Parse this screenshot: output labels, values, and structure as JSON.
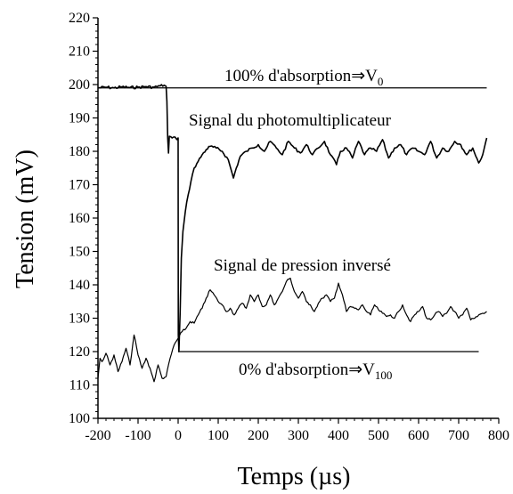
{
  "chart_data": {
    "type": "line",
    "title": "",
    "xlabel": "Temps (µs)",
    "ylabel": "Tension (mV)",
    "xlim": [
      -200,
      800
    ],
    "ylim": [
      100,
      220
    ],
    "xticks": [
      -200,
      -100,
      0,
      100,
      200,
      300,
      400,
      500,
      600,
      700,
      800
    ],
    "yticks": [
      100,
      110,
      120,
      130,
      140,
      150,
      160,
      170,
      180,
      190,
      200,
      210,
      220
    ],
    "xtick_labels": [
      "-200",
      "-100",
      "0",
      "100",
      "200",
      "300",
      "400",
      "500",
      "600",
      "700",
      "800"
    ],
    "ytick_labels": [
      "100",
      "110",
      "120",
      "130",
      "140",
      "150",
      "160",
      "170",
      "180",
      "190",
      "200",
      "210",
      "220"
    ],
    "grid": false,
    "reference_lines": [
      {
        "y": 199,
        "x_range": [
          -200,
          770
        ]
      },
      {
        "y": 120,
        "x_range": [
          0,
          750
        ]
      }
    ],
    "series": [
      {
        "points": [
          [
            -200,
            199
          ],
          [
            -180,
            199.2
          ],
          [
            -160,
            199
          ],
          [
            -140,
            199.3
          ],
          [
            -120,
            199.1
          ],
          [
            -100,
            199.2
          ],
          [
            -80,
            199.4
          ],
          [
            -60,
            199.2
          ],
          [
            -45,
            199.6
          ],
          [
            -35,
            199.8
          ],
          [
            -30,
            199.5
          ],
          [
            -28,
            195
          ],
          [
            -26,
            184
          ],
          [
            -24,
            179.5
          ],
          [
            -22,
            184.5
          ],
          [
            -15,
            184
          ],
          [
            -8,
            184.3
          ],
          [
            -3,
            183.5
          ],
          [
            0,
            184
          ],
          [
            0.5,
            125
          ],
          [
            2,
            120
          ],
          [
            5,
            132
          ],
          [
            8,
            148
          ],
          [
            12,
            156
          ],
          [
            18,
            162
          ],
          [
            25,
            167
          ],
          [
            32,
            171
          ],
          [
            40,
            175
          ],
          [
            50,
            177
          ],
          [
            60,
            179
          ],
          [
            70,
            180.5
          ],
          [
            80,
            181.5
          ],
          [
            95,
            181
          ],
          [
            110,
            180
          ],
          [
            125,
            177.5
          ],
          [
            138,
            172
          ],
          [
            145,
            175
          ],
          [
            155,
            178.5
          ],
          [
            170,
            180
          ],
          [
            185,
            181
          ],
          [
            200,
            182
          ],
          [
            215,
            180
          ],
          [
            230,
            183
          ],
          [
            245,
            181
          ],
          [
            260,
            179
          ],
          [
            275,
            183
          ],
          [
            290,
            181
          ],
          [
            305,
            179.5
          ],
          [
            320,
            182
          ],
          [
            335,
            179
          ],
          [
            350,
            181
          ],
          [
            365,
            183
          ],
          [
            380,
            179
          ],
          [
            395,
            176
          ],
          [
            405,
            180
          ],
          [
            420,
            181
          ],
          [
            435,
            178
          ],
          [
            450,
            183
          ],
          [
            465,
            179
          ],
          [
            480,
            181
          ],
          [
            495,
            180
          ],
          [
            510,
            183.5
          ],
          [
            525,
            178
          ],
          [
            540,
            181
          ],
          [
            555,
            182
          ],
          [
            570,
            179
          ],
          [
            585,
            181
          ],
          [
            600,
            180
          ],
          [
            615,
            179
          ],
          [
            630,
            183
          ],
          [
            645,
            178
          ],
          [
            660,
            181
          ],
          [
            675,
            180
          ],
          [
            690,
            183
          ],
          [
            705,
            182
          ],
          [
            720,
            179
          ],
          [
            735,
            181
          ],
          [
            750,
            176.5
          ],
          [
            760,
            179
          ],
          [
            770,
            184
          ]
        ]
      },
      {
        "points": [
          [
            -200,
            112
          ],
          [
            -195,
            118
          ],
          [
            -190,
            117
          ],
          [
            -180,
            119.5
          ],
          [
            -170,
            116
          ],
          [
            -160,
            119
          ],
          [
            -150,
            114
          ],
          [
            -140,
            117
          ],
          [
            -130,
            121
          ],
          [
            -120,
            116
          ],
          [
            -110,
            125
          ],
          [
            -100,
            119
          ],
          [
            -90,
            115
          ],
          [
            -80,
            118
          ],
          [
            -70,
            115
          ],
          [
            -60,
            111
          ],
          [
            -50,
            116
          ],
          [
            -40,
            112
          ],
          [
            -30,
            112.5
          ],
          [
            -20,
            118
          ],
          [
            -10,
            122
          ],
          [
            0,
            124
          ],
          [
            10,
            126
          ],
          [
            20,
            127
          ],
          [
            30,
            129
          ],
          [
            40,
            128.5
          ],
          [
            50,
            131
          ],
          [
            60,
            133
          ],
          [
            70,
            136
          ],
          [
            80,
            138.5
          ],
          [
            90,
            137
          ],
          [
            100,
            135
          ],
          [
            110,
            134
          ],
          [
            120,
            132
          ],
          [
            130,
            133
          ],
          [
            140,
            131
          ],
          [
            150,
            133
          ],
          [
            160,
            134.5
          ],
          [
            170,
            133
          ],
          [
            180,
            137
          ],
          [
            190,
            135
          ],
          [
            200,
            137
          ],
          [
            210,
            133.5
          ],
          [
            220,
            134
          ],
          [
            230,
            137
          ],
          [
            240,
            134
          ],
          [
            250,
            136
          ],
          [
            260,
            138
          ],
          [
            270,
            141
          ],
          [
            280,
            142
          ],
          [
            290,
            138
          ],
          [
            300,
            136
          ],
          [
            310,
            138
          ],
          [
            320,
            135
          ],
          [
            330,
            134
          ],
          [
            340,
            132
          ],
          [
            350,
            134.5
          ],
          [
            360,
            136
          ],
          [
            370,
            137
          ],
          [
            380,
            135
          ],
          [
            390,
            136
          ],
          [
            400,
            140.5
          ],
          [
            410,
            137
          ],
          [
            420,
            132
          ],
          [
            430,
            133.5
          ],
          [
            440,
            133
          ],
          [
            450,
            132.5
          ],
          [
            460,
            134
          ],
          [
            470,
            132
          ],
          [
            480,
            131
          ],
          [
            490,
            134
          ],
          [
            500,
            132.5
          ],
          [
            510,
            131.5
          ],
          [
            520,
            130.5
          ],
          [
            530,
            131
          ],
          [
            540,
            130
          ],
          [
            550,
            132
          ],
          [
            560,
            134
          ],
          [
            570,
            131
          ],
          [
            580,
            129
          ],
          [
            590,
            131
          ],
          [
            600,
            132
          ],
          [
            610,
            133.5
          ],
          [
            620,
            130
          ],
          [
            630,
            129.5
          ],
          [
            640,
            131
          ],
          [
            650,
            132
          ],
          [
            660,
            130.5
          ],
          [
            670,
            131.5
          ],
          [
            680,
            133.5
          ],
          [
            690,
            132
          ],
          [
            700,
            130
          ],
          [
            710,
            131
          ],
          [
            720,
            133
          ],
          [
            730,
            129.5
          ],
          [
            740,
            130
          ],
          [
            750,
            131
          ],
          [
            760,
            131.5
          ],
          [
            770,
            132
          ]
        ]
      }
    ]
  },
  "annotations": {
    "top_text": "100% d'absorption⇒V",
    "top_sub": "0",
    "pm_signal": "Signal du photomultiplicateur",
    "pressure_signal": "Signal de pression inversé",
    "bottom_text": "0% d'absorption⇒V",
    "bottom_sub": "100"
  }
}
